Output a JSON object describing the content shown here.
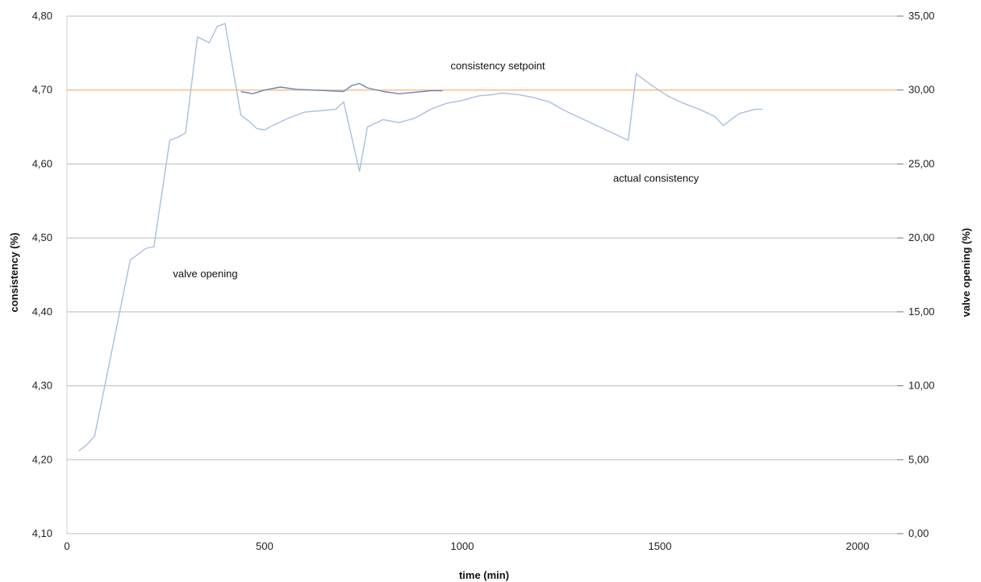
{
  "chart_data": {
    "type": "line",
    "xlabel": "time (min)",
    "ylabel": "consistency (%)",
    "y2label": "valve opening (%)",
    "xlim": [
      0,
      2100
    ],
    "ylim": [
      4.1,
      4.8
    ],
    "y2lim": [
      0,
      35
    ],
    "x_ticks": [
      0,
      500,
      1000,
      1500,
      2000
    ],
    "x_tick_labels": [
      "0",
      "500",
      "1000",
      "1500",
      "2000"
    ],
    "y_ticks": [
      4.1,
      4.2,
      4.3,
      4.4,
      4.5,
      4.6,
      4.7,
      4.8
    ],
    "y_tick_labels": [
      "4,10",
      "4,20",
      "4,30",
      "4,40",
      "4,50",
      "4,60",
      "4,70",
      "4,80"
    ],
    "y2_ticks": [
      0,
      5,
      10,
      15,
      20,
      25,
      30,
      35
    ],
    "y2_tick_labels": [
      "0,00",
      "5,00",
      "10,00",
      "15,00",
      "20,00",
      "25,00",
      "30,00",
      "35,00"
    ],
    "grid": true,
    "annotations": [
      {
        "text": "consistency setpoint",
        "x": 1090,
        "y": 4.728
      },
      {
        "text": "actual consistency",
        "x": 1490,
        "y": 4.576
      },
      {
        "text": "valve opening",
        "x": 350,
        "y": 4.447
      }
    ],
    "series": [
      {
        "axis": "y",
        "color": "#f4c49a",
        "x": [
          0,
          2100
        ],
        "values": [
          4.7,
          4.7
        ]
      },
      {
        "axis": "y",
        "color": "#6a86b8",
        "x": [
          440,
          470,
          500,
          540,
          580,
          620,
          660,
          700,
          720,
          740,
          760,
          800,
          840,
          880,
          920,
          950
        ],
        "values": [
          4.698,
          4.695,
          4.7,
          4.704,
          4.701,
          4.7,
          4.699,
          4.698,
          4.706,
          4.709,
          4.703,
          4.698,
          4.695,
          4.697,
          4.699,
          4.699
        ]
      },
      {
        "axis": "y2",
        "color": "#a8c0e0",
        "x": [
          30,
          50,
          70,
          160,
          180,
          200,
          220,
          260,
          280,
          300,
          330,
          360,
          380,
          400,
          440,
          460,
          480,
          500,
          520,
          560,
          600,
          640,
          680,
          700,
          740,
          760,
          800,
          840,
          880,
          920,
          960,
          1000,
          1040,
          1080,
          1100,
          1140,
          1180,
          1220,
          1260,
          1300,
          1340,
          1380,
          1420,
          1440,
          1480,
          1520,
          1560,
          1600,
          1640,
          1660,
          1700,
          1740,
          1760
        ],
        "values": [
          5.6,
          6.0,
          6.6,
          18.5,
          18.9,
          19.3,
          19.4,
          26.6,
          26.8,
          27.1,
          33.6,
          33.2,
          34.3,
          34.5,
          28.3,
          27.9,
          27.4,
          27.3,
          27.6,
          28.1,
          28.5,
          28.6,
          28.7,
          29.2,
          24.5,
          27.5,
          28.0,
          27.8,
          28.1,
          28.7,
          29.1,
          29.3,
          29.6,
          29.7,
          29.8,
          29.7,
          29.5,
          29.2,
          28.6,
          28.1,
          27.6,
          27.1,
          26.6,
          31.1,
          30.3,
          29.6,
          29.1,
          28.7,
          28.2,
          27.6,
          28.4,
          28.7,
          28.7
        ]
      }
    ]
  }
}
